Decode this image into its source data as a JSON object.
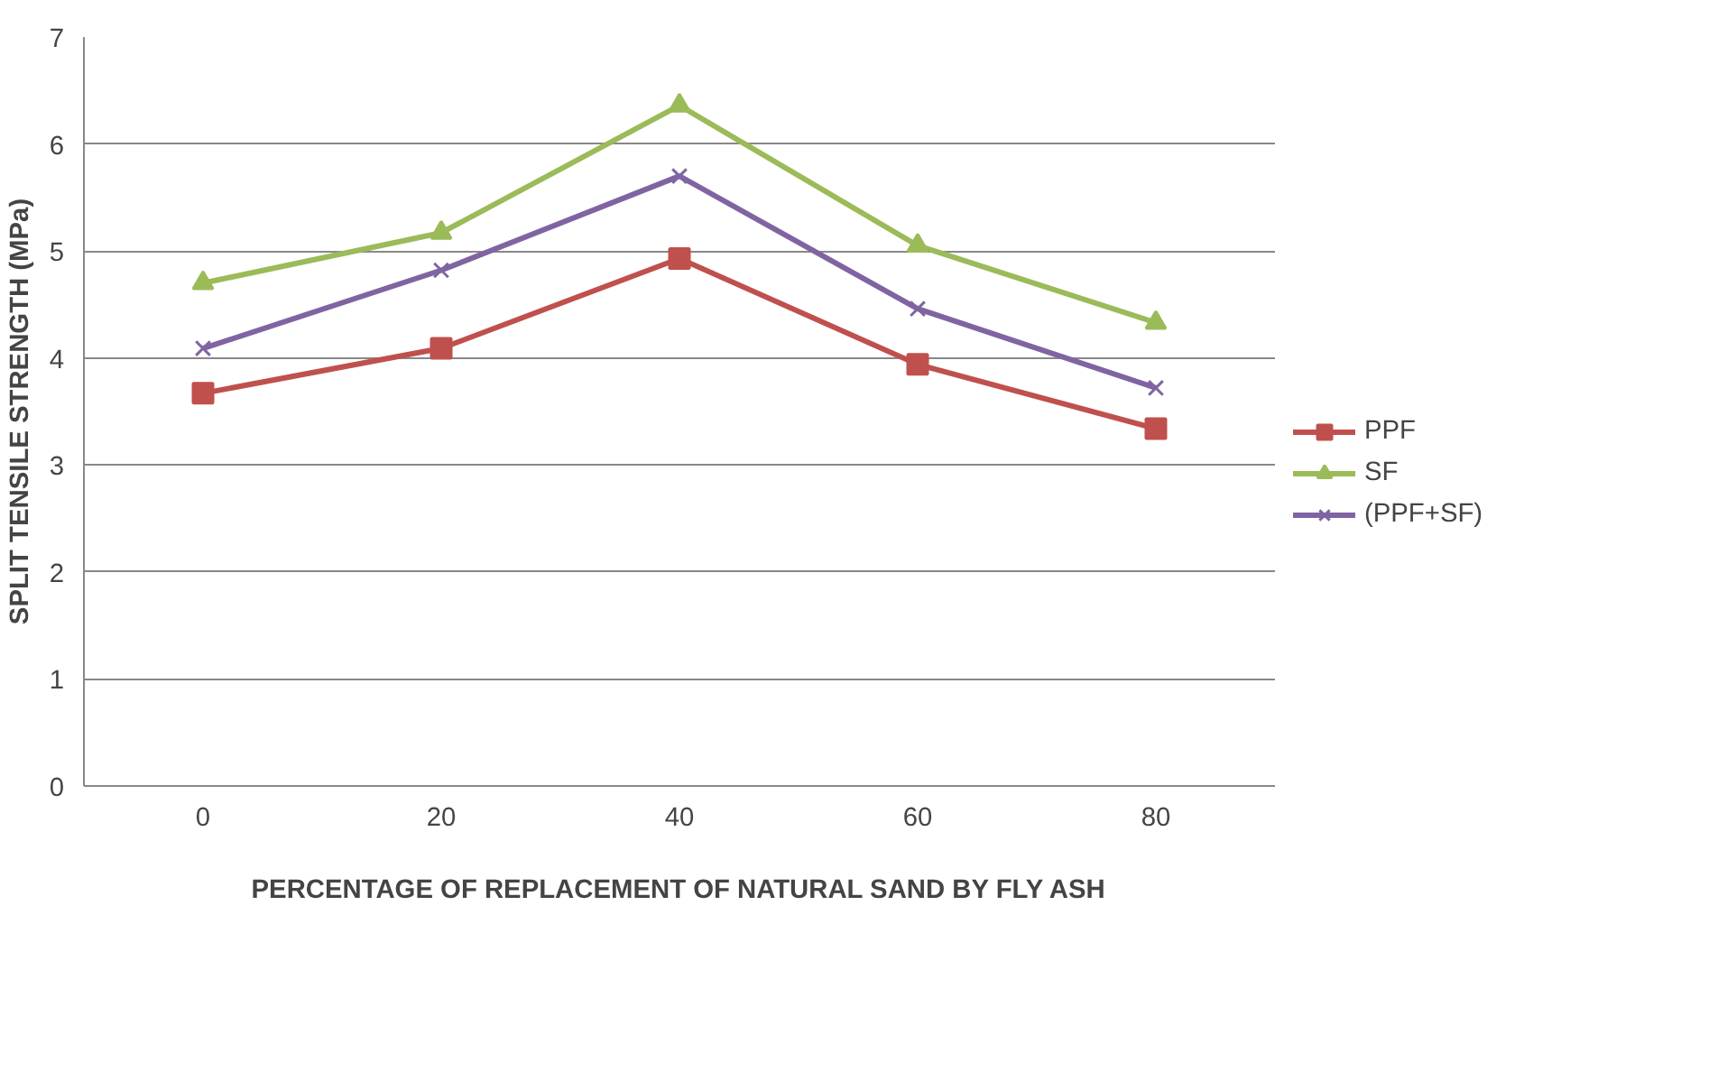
{
  "chart_data": {
    "type": "line",
    "xlabel": "PERCENTAGE OF REPLACEMENT OF NATURAL SAND BY FLY ASH",
    "ylabel": "SPLIT TENSILE STRENGTH (MPa)",
    "categories": [
      "0",
      "20",
      "40",
      "60",
      "80"
    ],
    "series": [
      {
        "name": "PPF",
        "color": "#c0504d",
        "marker": "square",
        "values": [
          3.67,
          4.09,
          4.93,
          3.94,
          3.34
        ]
      },
      {
        "name": "SF",
        "color": "#9bbb59",
        "marker": "triangle",
        "values": [
          4.7,
          5.17,
          6.36,
          5.05,
          4.33
        ]
      },
      {
        "name": "(PPF+SF)",
        "color": "#8064a2",
        "marker": "cross",
        "values": [
          4.09,
          4.82,
          5.7,
          4.46,
          3.72
        ]
      }
    ],
    "ylim": [
      0,
      7
    ],
    "yticks": [
      0,
      1,
      2,
      3,
      4,
      5,
      6,
      7
    ],
    "grid": "y",
    "legend": "right",
    "line_style": "solid"
  }
}
